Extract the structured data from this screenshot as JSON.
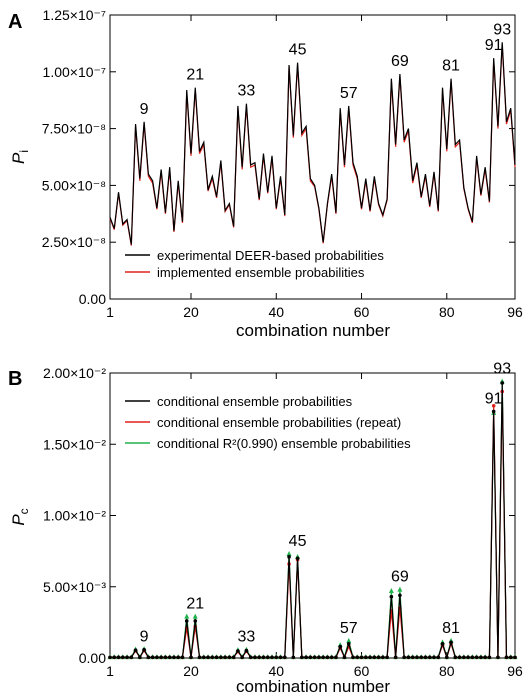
{
  "chart_data": [
    {
      "panel": "A",
      "type": "line",
      "ylabel": "P",
      "ylabel_sub": "i",
      "xlabel": "combination number",
      "xlim": [
        1,
        96
      ],
      "ylim": [
        0,
        1.25e-07
      ],
      "x_ticks": [
        {
          "value": 1,
          "label": "1"
        },
        {
          "value": 20,
          "label": "20"
        },
        {
          "value": 40,
          "label": "40"
        },
        {
          "value": 60,
          "label": "60"
        },
        {
          "value": 80,
          "label": "80"
        },
        {
          "value": 96,
          "label": "96"
        }
      ],
      "y_ticks": [
        {
          "value": 0,
          "label": "0.00"
        },
        {
          "value": 2.5e-08,
          "label": "2.50×10⁻⁸"
        },
        {
          "value": 5e-08,
          "label": "5.00×10⁻⁸"
        },
        {
          "value": 7.5e-08,
          "label": "7.50×10⁻⁸"
        },
        {
          "value": 1e-07,
          "label": "1.00×10⁻⁷"
        },
        {
          "value": 1.25e-07,
          "label": "1.25×10⁻⁷"
        }
      ],
      "series": [
        {
          "name": "experimental DEER-based probabilities",
          "color": "#000000",
          "values": [
            3.6e-08,
            3.1e-08,
            4.7e-08,
            3.3e-08,
            3.5e-08,
            2.4e-08,
            7.7e-08,
            5.3e-08,
            7.8e-08,
            5.5e-08,
            5.2e-08,
            4e-08,
            5.7e-08,
            3.8e-08,
            5.8e-08,
            3e-08,
            5.2e-08,
            3.4e-08,
            9.2e-08,
            6.4e-08,
            9.3e-08,
            6.5e-08,
            6.9e-08,
            4.8e-08,
            5.4e-08,
            4.5e-08,
            6.1e-08,
            3.9e-08,
            4.2e-08,
            3.2e-08,
            8.5e-08,
            5.8e-08,
            8.6e-08,
            5.9e-08,
            6e-08,
            4.4e-08,
            6.4e-08,
            4.7e-08,
            6.3e-08,
            4e-08,
            5.4e-08,
            3.7e-08,
            1.03e-07,
            7.2e-08,
            1.04e-07,
            7.3e-08,
            7.6e-08,
            5.3e-08,
            5e-08,
            4e-08,
            2.5e-08,
            4.2e-08,
            5.5e-08,
            3.8e-08,
            8.4e-08,
            5.9e-08,
            8.5e-08,
            6e-08,
            5.4e-08,
            4e-08,
            5.3e-08,
            3.9e-08,
            5.4e-08,
            4.2e-08,
            3.7e-08,
            4.4e-08,
            9.7e-08,
            6.8e-08,
            9.9e-08,
            7e-08,
            7.5e-08,
            5.2e-08,
            6e-08,
            4.5e-08,
            5.5e-08,
            4.1e-08,
            5.6e-08,
            3.9e-08,
            9.3e-08,
            6.6e-08,
            9.7e-08,
            6.8e-08,
            7e-08,
            4.9e-08,
            4e-08,
            3.4e-08,
            6.3e-08,
            4.6e-08,
            5.8e-08,
            4.3e-08,
            1.06e-07,
            7.6e-08,
            1.13e-07,
            7.8e-08,
            8.4e-08,
            5.9e-08
          ]
        },
        {
          "name": "implemented ensemble probabilities",
          "color": "#e0201b",
          "values": [
            3.55e-08,
            3.05e-08,
            4.65e-08,
            3.25e-08,
            3.45e-08,
            2.35e-08,
            7.6e-08,
            5.2e-08,
            7.7e-08,
            5.4e-08,
            5.1e-08,
            3.95e-08,
            5.6e-08,
            3.75e-08,
            5.7e-08,
            2.95e-08,
            5.1e-08,
            3.35e-08,
            9.1e-08,
            6.3e-08,
            9.2e-08,
            6.4e-08,
            6.8e-08,
            4.75e-08,
            5.3e-08,
            4.45e-08,
            6e-08,
            3.85e-08,
            4.15e-08,
            3.15e-08,
            8.4e-08,
            5.7e-08,
            8.5e-08,
            5.8e-08,
            5.9e-08,
            4.35e-08,
            6.3e-08,
            4.65e-08,
            6.2e-08,
            3.95e-08,
            5.3e-08,
            3.65e-08,
            1.02e-07,
            7.1e-08,
            1.03e-07,
            7.2e-08,
            7.5e-08,
            5.2e-08,
            4.95e-08,
            3.95e-08,
            2.45e-08,
            4.15e-08,
            5.4e-08,
            3.75e-08,
            8.3e-08,
            5.8e-08,
            8.4e-08,
            5.9e-08,
            5.3e-08,
            3.95e-08,
            5.2e-08,
            3.85e-08,
            5.3e-08,
            4.15e-08,
            3.65e-08,
            4.35e-08,
            9.6e-08,
            6.7e-08,
            9.8e-08,
            6.9e-08,
            7.4e-08,
            5.1e-08,
            5.9e-08,
            4.45e-08,
            5.4e-08,
            4.05e-08,
            5.5e-08,
            3.85e-08,
            9.2e-08,
            6.5e-08,
            9.6e-08,
            6.7e-08,
            6.9e-08,
            4.85e-08,
            3.95e-08,
            3.35e-08,
            6.2e-08,
            4.55e-08,
            5.7e-08,
            4.25e-08,
            1.05e-07,
            7.5e-08,
            1.12e-07,
            7.7e-08,
            8.3e-08,
            5.8e-08
          ]
        }
      ],
      "annotations": [
        {
          "x": 9,
          "y": 7.8e-08,
          "text": "9"
        },
        {
          "x": 21,
          "y": 9.3e-08,
          "text": "21"
        },
        {
          "x": 33,
          "y": 8.6e-08,
          "text": "33"
        },
        {
          "x": 45,
          "y": 1.04e-07,
          "text": "45"
        },
        {
          "x": 57,
          "y": 8.5e-08,
          "text": "57"
        },
        {
          "x": 69,
          "y": 9.9e-08,
          "text": "69"
        },
        {
          "x": 81,
          "y": 9.7e-08,
          "text": "81"
        },
        {
          "x": 91,
          "y": 1.06e-07,
          "text": "91"
        },
        {
          "x": 93,
          "y": 1.13e-07,
          "text": "93"
        }
      ],
      "legend_position": "bottom-left"
    },
    {
      "panel": "B",
      "type": "line",
      "ylabel": "P",
      "ylabel_sub": "c",
      "xlabel": "combination number",
      "xlim": [
        1,
        96
      ],
      "ylim": [
        0,
        0.02
      ],
      "x_ticks": [
        {
          "value": 1,
          "label": "1"
        },
        {
          "value": 20,
          "label": "20"
        },
        {
          "value": 40,
          "label": "40"
        },
        {
          "value": 60,
          "label": "60"
        },
        {
          "value": 80,
          "label": "80"
        },
        {
          "value": 96,
          "label": "96"
        }
      ],
      "y_ticks": [
        {
          "value": 0,
          "label": "0.00"
        },
        {
          "value": 0.005,
          "label": "5.00×10⁻³"
        },
        {
          "value": 0.01,
          "label": "1.00×10⁻²"
        },
        {
          "value": 0.015,
          "label": "1.50×10⁻²"
        },
        {
          "value": 0.02,
          "label": "2.00×10⁻²"
        }
      ],
      "peaks": [
        {
          "x": 7,
          "values": [
            0.00055,
            0.0005,
            0.0006
          ]
        },
        {
          "x": 9,
          "values": [
            0.00058,
            0.00052,
            0.00062
          ]
        },
        {
          "x": 19,
          "values": [
            0.0026,
            0.0021,
            0.0029
          ]
        },
        {
          "x": 21,
          "values": [
            0.0026,
            0.0022,
            0.0029
          ]
        },
        {
          "x": 31,
          "values": [
            0.0005,
            0.00045,
            0.00055
          ]
        },
        {
          "x": 33,
          "values": [
            0.00052,
            0.00048,
            0.00058
          ]
        },
        {
          "x": 43,
          "values": [
            0.0071,
            0.0066,
            0.0073
          ]
        },
        {
          "x": 45,
          "values": [
            0.007,
            0.0069,
            0.0071
          ]
        },
        {
          "x": 55,
          "values": [
            0.0008,
            0.0007,
            0.0009
          ]
        },
        {
          "x": 57,
          "values": [
            0.001,
            0.0008,
            0.0012
          ]
        },
        {
          "x": 67,
          "values": [
            0.0043,
            0.0033,
            0.0047
          ]
        },
        {
          "x": 69,
          "values": [
            0.0044,
            0.0035,
            0.0048
          ]
        },
        {
          "x": 79,
          "values": [
            0.001,
            0.0009,
            0.0011
          ]
        },
        {
          "x": 81,
          "values": [
            0.0011,
            0.001,
            0.0012
          ]
        },
        {
          "x": 91,
          "values": [
            0.0173,
            0.0177,
            0.0172
          ]
        },
        {
          "x": 93,
          "values": [
            0.0193,
            0.0187,
            0.0194
          ]
        }
      ],
      "baseline": [
        5e-05,
        4e-05,
        6e-05
      ],
      "series": [
        {
          "name": "conditional ensemble probabilities",
          "color": "#000000"
        },
        {
          "name": "conditional ensemble probabilities (repeat)",
          "color": "#e0201b"
        },
        {
          "name": "conditional R²(0.990) ensemble probabilities",
          "color": "#22b24c"
        }
      ],
      "annotations": [
        {
          "x": 9,
          "y": 0.0006,
          "text": "9"
        },
        {
          "x": 21,
          "y": 0.0029,
          "text": "21"
        },
        {
          "x": 33,
          "y": 0.00058,
          "text": "33"
        },
        {
          "x": 45,
          "y": 0.0073,
          "text": "45"
        },
        {
          "x": 57,
          "y": 0.0012,
          "text": "57"
        },
        {
          "x": 69,
          "y": 0.0048,
          "text": "69"
        },
        {
          "x": 81,
          "y": 0.0012,
          "text": "81"
        },
        {
          "x": 91,
          "y": 0.0173,
          "text": "91"
        },
        {
          "x": 93,
          "y": 0.0194,
          "text": "93"
        }
      ],
      "legend_position": "top-left"
    }
  ]
}
